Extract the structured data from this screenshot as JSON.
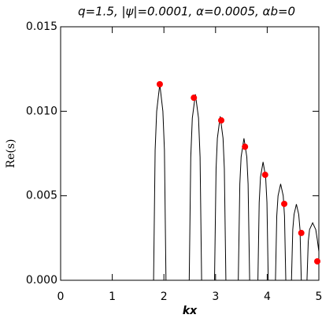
{
  "chart_data": {
    "type": "line",
    "title": "q=1.5,  |ψ|=0.0001,  α=0.0005,  αb=0",
    "x_label": "kx",
    "y_label": "Re(s)",
    "xlim": [
      0,
      5
    ],
    "ylim": [
      0,
      0.015
    ],
    "xticks": [
      0,
      1,
      2,
      3,
      4,
      5
    ],
    "yticks": [
      {
        "value": 0,
        "label": "0.000"
      },
      {
        "value": 0.005,
        "label": "0.005"
      },
      {
        "value": 0.01,
        "label": "0.010"
      },
      {
        "value": 0.015,
        "label": "0.015"
      }
    ],
    "grid": false,
    "series": [
      {
        "kind": "line",
        "color": "#000000",
        "x": [
          0,
          1.8,
          1.83,
          1.86,
          1.92,
          1.98,
          2.01,
          2.04,
          2.49,
          2.52,
          2.55,
          2.61,
          2.67,
          2.7,
          2.73,
          2.98,
          3.01,
          3.035,
          3.09,
          3.145,
          3.17,
          3.2,
          3.44,
          3.47,
          3.495,
          3.55,
          3.605,
          3.63,
          3.66,
          3.82,
          3.845,
          3.87,
          3.92,
          3.97,
          3.995,
          4.02,
          4.16,
          4.185,
          4.21,
          4.26,
          4.31,
          4.335,
          4.36,
          4.47,
          4.495,
          4.52,
          4.565,
          4.61,
          4.635,
          4.66,
          4.77,
          4.795,
          4.82,
          4.88,
          4.94,
          4.97,
          5.0
        ],
        "values": [
          0,
          0,
          0.0077,
          0.01,
          0.0116,
          0.01,
          0.0077,
          0,
          0,
          0.0073,
          0.0096,
          0.011,
          0.0096,
          0.0073,
          0,
          0,
          0.0066,
          0.0084,
          0.0097,
          0.0084,
          0.0066,
          0,
          0,
          0.0057,
          0.0073,
          0.0084,
          0.0073,
          0.0057,
          0,
          0,
          0.0046,
          0.0061,
          0.007,
          0.0061,
          0.0046,
          0,
          0,
          0.0038,
          0.005,
          0.0057,
          0.005,
          0.0038,
          0,
          0,
          0.003,
          0.0039,
          0.0045,
          0.0039,
          0.003,
          0,
          0,
          0.0023,
          0.003,
          0.0034,
          0.003,
          0.0024,
          0.0017
        ]
      },
      {
        "kind": "scatter",
        "color": "#ff0000",
        "x": [
          1.92,
          2.58,
          3.11,
          3.57,
          3.96,
          4.33,
          4.66,
          4.97
        ],
        "values": [
          0.0116,
          0.0108,
          0.00946,
          0.0079,
          0.00624,
          0.00452,
          0.0028,
          0.00112
        ]
      }
    ]
  }
}
